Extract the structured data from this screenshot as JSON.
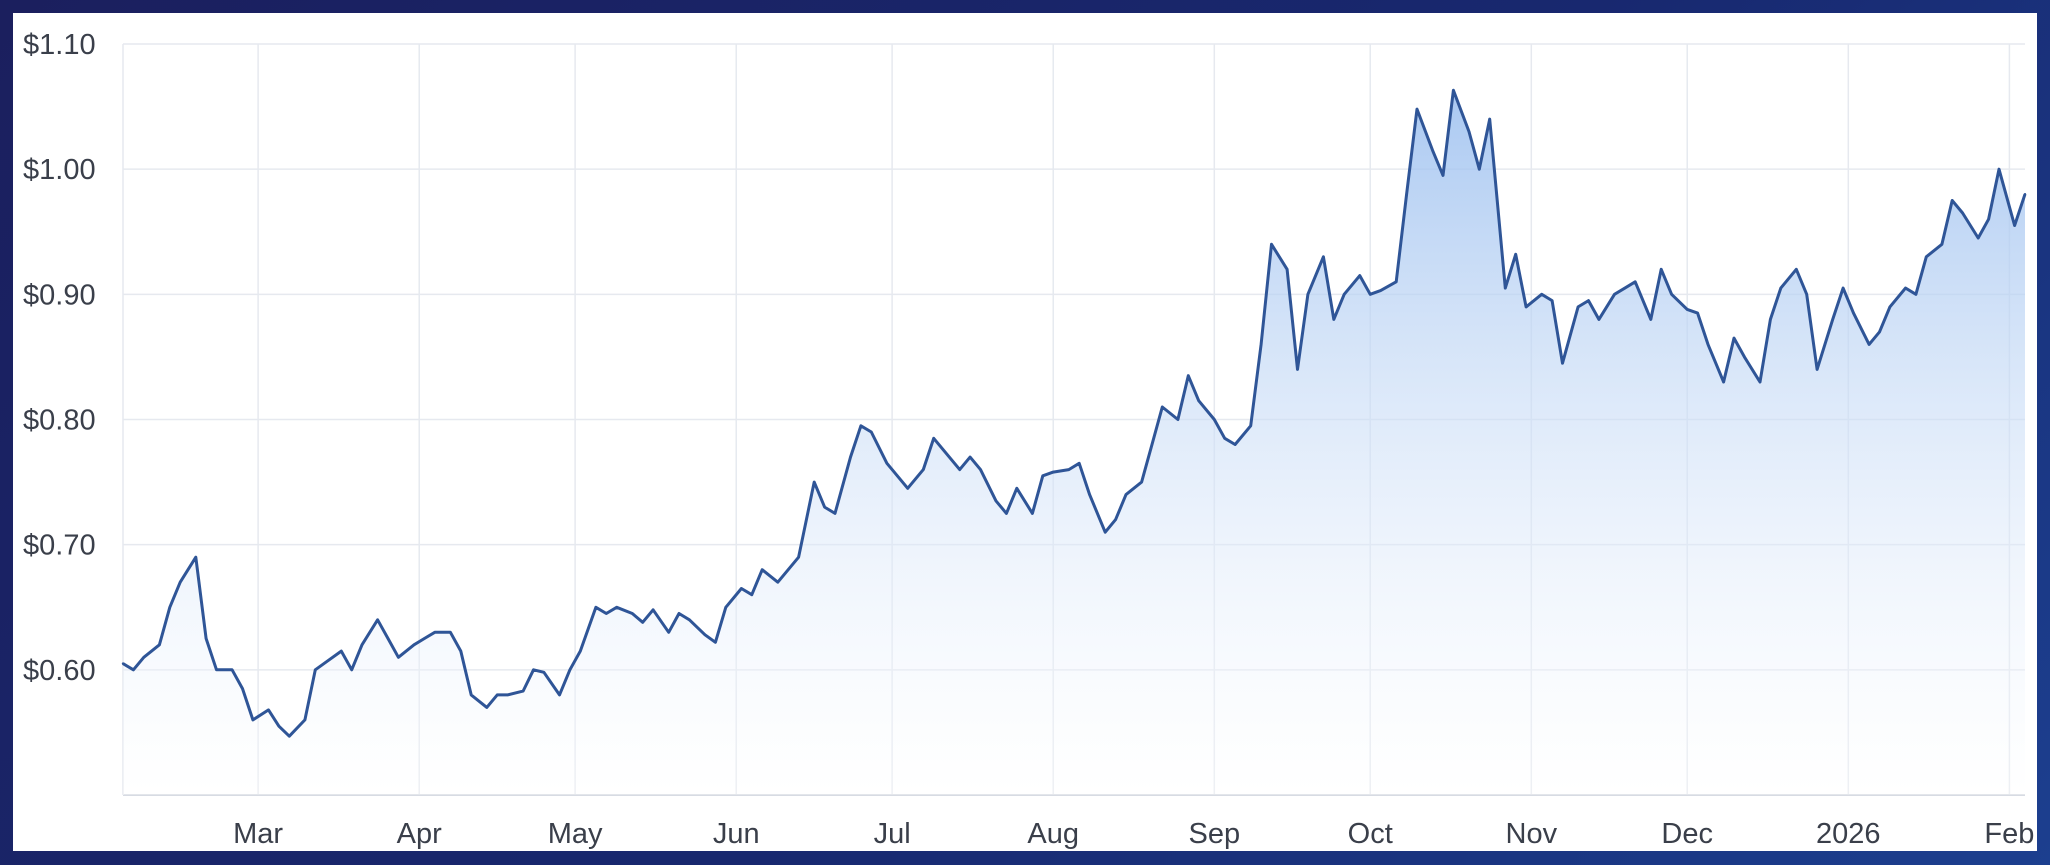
{
  "colors": {
    "line": "#2f5597",
    "fill_top": "#9bbfef",
    "fill_bottom": "#ffffff",
    "grid": "#e6e9ef"
  },
  "chart_data": {
    "type": "area",
    "title": "",
    "xlabel": "",
    "ylabel": "",
    "grid": true,
    "legend": "none",
    "ylim": [
      0.5,
      1.1
    ],
    "xlim": [
      "2025-02-03",
      "2026-02-04"
    ],
    "y_ticks": [
      {
        "value": 0.6,
        "label": "$0.60"
      },
      {
        "value": 0.7,
        "label": "$0.70"
      },
      {
        "value": 0.8,
        "label": "$0.80"
      },
      {
        "value": 0.9,
        "label": "$0.90"
      },
      {
        "value": 1.0,
        "label": "$1.00"
      },
      {
        "value": 1.1,
        "label": "$1.10"
      }
    ],
    "x_ticks": [
      {
        "date": "2025-03-01",
        "label": "Mar"
      },
      {
        "date": "2025-04-01",
        "label": "Apr"
      },
      {
        "date": "2025-05-01",
        "label": "May"
      },
      {
        "date": "2025-06-01",
        "label": "Jun"
      },
      {
        "date": "2025-07-01",
        "label": "Jul"
      },
      {
        "date": "2025-08-01",
        "label": "Aug"
      },
      {
        "date": "2025-09-01",
        "label": "Sep"
      },
      {
        "date": "2025-10-01",
        "label": "Oct"
      },
      {
        "date": "2025-11-01",
        "label": "Nov"
      },
      {
        "date": "2025-12-01",
        "label": "Dec"
      },
      {
        "date": "2026-01-01",
        "label": "2026"
      },
      {
        "date": "2026-02-01",
        "label": "Feb"
      }
    ],
    "series": [
      {
        "x": [
          "2025-02-03",
          "2025-02-05",
          "2025-02-07",
          "2025-02-10",
          "2025-02-12",
          "2025-02-14",
          "2025-02-17",
          "2025-02-19",
          "2025-02-21",
          "2025-02-24",
          "2025-02-26",
          "2025-02-28",
          "2025-03-03",
          "2025-03-05",
          "2025-03-07",
          "2025-03-10",
          "2025-03-12",
          "2025-03-14",
          "2025-03-17",
          "2025-03-19",
          "2025-03-21",
          "2025-03-24",
          "2025-03-26",
          "2025-03-28",
          "2025-03-31",
          "2025-04-02",
          "2025-04-04",
          "2025-04-07",
          "2025-04-09",
          "2025-04-11",
          "2025-04-14",
          "2025-04-16",
          "2025-04-18",
          "2025-04-21",
          "2025-04-23",
          "2025-04-25",
          "2025-04-28",
          "2025-04-30",
          "2025-05-02",
          "2025-05-05",
          "2025-05-07",
          "2025-05-09",
          "2025-05-12",
          "2025-05-14",
          "2025-05-16",
          "2025-05-19",
          "2025-05-21",
          "2025-05-23",
          "2025-05-26",
          "2025-05-28",
          "2025-05-30",
          "2025-06-02",
          "2025-06-04",
          "2025-06-06",
          "2025-06-09",
          "2025-06-11",
          "2025-06-13",
          "2025-06-16",
          "2025-06-18",
          "2025-06-20",
          "2025-06-23",
          "2025-06-25",
          "2025-06-27",
          "2025-06-30",
          "2025-07-02",
          "2025-07-04",
          "2025-07-07",
          "2025-07-09",
          "2025-07-11",
          "2025-07-14",
          "2025-07-16",
          "2025-07-18",
          "2025-07-21",
          "2025-07-23",
          "2025-07-25",
          "2025-07-28",
          "2025-07-30",
          "2025-08-01",
          "2025-08-04",
          "2025-08-06",
          "2025-08-08",
          "2025-08-11",
          "2025-08-13",
          "2025-08-15",
          "2025-08-18",
          "2025-08-20",
          "2025-08-22",
          "2025-08-25",
          "2025-08-27",
          "2025-08-29",
          "2025-09-01",
          "2025-09-03",
          "2025-09-05",
          "2025-09-08",
          "2025-09-10",
          "2025-09-12",
          "2025-09-15",
          "2025-09-17",
          "2025-09-19",
          "2025-09-22",
          "2025-09-24",
          "2025-09-26",
          "2025-09-29",
          "2025-10-01",
          "2025-10-03",
          "2025-10-06",
          "2025-10-08",
          "2025-10-10",
          "2025-10-13",
          "2025-10-15",
          "2025-10-17",
          "2025-10-20",
          "2025-10-22",
          "2025-10-24",
          "2025-10-27",
          "2025-10-29",
          "2025-10-31",
          "2025-11-03",
          "2025-11-05",
          "2025-11-07",
          "2025-11-10",
          "2025-11-12",
          "2025-11-14",
          "2025-11-17",
          "2025-11-19",
          "2025-11-21",
          "2025-11-24",
          "2025-11-26",
          "2025-11-28",
          "2025-12-01",
          "2025-12-03",
          "2025-12-05",
          "2025-12-08",
          "2025-12-10",
          "2025-12-12",
          "2025-12-15",
          "2025-12-17",
          "2025-12-19",
          "2025-12-22",
          "2025-12-24",
          "2025-12-26",
          "2025-12-29",
          "2025-12-31",
          "2026-01-02",
          "2026-01-05",
          "2026-01-07",
          "2026-01-09",
          "2026-01-12",
          "2026-01-14",
          "2026-01-16",
          "2026-01-19",
          "2026-01-21",
          "2026-01-23",
          "2026-01-26",
          "2026-01-28",
          "2026-01-30",
          "2026-02-02",
          "2026-02-04"
        ],
        "values": [
          0.605,
          0.6,
          0.61,
          0.62,
          0.65,
          0.67,
          0.69,
          0.625,
          0.6,
          0.6,
          0.585,
          0.56,
          0.568,
          0.555,
          0.547,
          0.56,
          0.6,
          0.606,
          0.615,
          0.6,
          0.62,
          0.64,
          0.625,
          0.61,
          0.62,
          0.625,
          0.63,
          0.63,
          0.615,
          0.58,
          0.57,
          0.58,
          0.58,
          0.583,
          0.6,
          0.598,
          0.58,
          0.6,
          0.615,
          0.65,
          0.645,
          0.65,
          0.645,
          0.638,
          0.648,
          0.63,
          0.645,
          0.64,
          0.628,
          0.622,
          0.65,
          0.665,
          0.66,
          0.68,
          0.67,
          0.68,
          0.69,
          0.75,
          0.73,
          0.725,
          0.77,
          0.795,
          0.79,
          0.765,
          0.755,
          0.745,
          0.76,
          0.785,
          0.775,
          0.76,
          0.77,
          0.76,
          0.735,
          0.725,
          0.745,
          0.725,
          0.755,
          0.758,
          0.76,
          0.765,
          0.74,
          0.71,
          0.72,
          0.74,
          0.75,
          0.78,
          0.81,
          0.8,
          0.835,
          0.815,
          0.8,
          0.785,
          0.78,
          0.795,
          0.86,
          0.94,
          0.92,
          0.84,
          0.9,
          0.93,
          0.88,
          0.9,
          0.915,
          0.9,
          0.903,
          0.91,
          0.98,
          1.048,
          1.015,
          0.995,
          1.063,
          1.03,
          1.0,
          1.04,
          0.905,
          0.932,
          0.89,
          0.9,
          0.895,
          0.845,
          0.89,
          0.895,
          0.88,
          0.9,
          0.905,
          0.91,
          0.88,
          0.92,
          0.9,
          0.888,
          0.885,
          0.86,
          0.83,
          0.865,
          0.85,
          0.83,
          0.88,
          0.905,
          0.92,
          0.9,
          0.84,
          0.88,
          0.905,
          0.885,
          0.86,
          0.87,
          0.89,
          0.905,
          0.9,
          0.93,
          0.94,
          0.975,
          0.965,
          0.945,
          0.96,
          1.0,
          0.955,
          0.98
        ]
      }
    ]
  }
}
